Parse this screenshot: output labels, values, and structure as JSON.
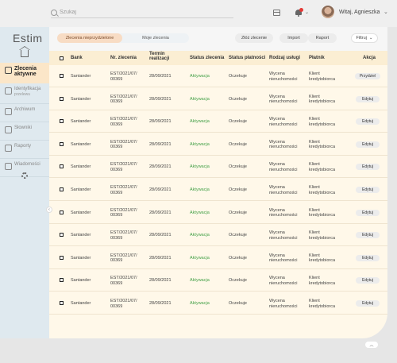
{
  "header": {
    "search_placeholder": "Szukaj",
    "user_name": "Witaj, Agnieszka",
    "icons": [
      "search-icon",
      "calendar-icon",
      "bell-icon",
      "chevron-down-icon"
    ],
    "notification_color": "#e53935"
  },
  "sidebar": {
    "logo": "Estim",
    "items": [
      {
        "label": "Zlecenia",
        "sub": "aktywne",
        "active": true
      },
      {
        "label": "Identyfikacja",
        "sub": "przelewu",
        "active": false
      },
      {
        "label": "Archiwum",
        "sub": "",
        "active": false
      },
      {
        "label": "Słowniki",
        "sub": "",
        "active": false
      },
      {
        "label": "Raporty",
        "sub": "",
        "active": false
      },
      {
        "label": "Wiadomości",
        "sub": "",
        "active": false
      }
    ]
  },
  "toolbar": {
    "tab_unassigned": "Zlecenia nieprzydzielone",
    "tab_mine": "Moje zlecenia",
    "add_order": "Złóż zlecenie",
    "import": "Import",
    "report": "Raport",
    "filters": "Filtruj"
  },
  "table": {
    "columns": [
      "Bank",
      "Nr. zlecenia",
      "Termin realizacji",
      "Status zlecenia",
      "Status płatności",
      "Rodzaj usługi",
      "Płatnik",
      "Akcja"
    ],
    "rows": [
      {
        "bank": "Santander",
        "nr1": "EST/2021/07/",
        "nr2": "00369",
        "termin": "28/09/2021",
        "status": "Aktywacja",
        "platnosc": "Oczekuje",
        "usluga1": "Wycena",
        "usluga2": "nieruchomości",
        "platnik1": "Klient",
        "platnik2": "kredytobiorca",
        "akcja": "Przydziel"
      },
      {
        "bank": "Santander",
        "nr1": "EST/2021/07/",
        "nr2": "00369",
        "termin": "28/09/2021",
        "status": "Aktywacja",
        "platnosc": "Oczekuje",
        "usluga1": "Wycena",
        "usluga2": "nieruchomości",
        "platnik1": "Klient",
        "platnik2": "kredytobiorca",
        "akcja": "Edytuj"
      },
      {
        "bank": "Santander",
        "nr1": "EST/2021/07/",
        "nr2": "00369",
        "termin": "28/09/2021",
        "status": "Aktywacja",
        "platnosc": "Oczekuje",
        "usluga1": "Wycena",
        "usluga2": "nieruchomości",
        "platnik1": "Klient",
        "platnik2": "kredytobiorca",
        "akcja": "Edytuj"
      },
      {
        "bank": "Santander",
        "nr1": "EST/2021/07/",
        "nr2": "00369",
        "termin": "28/09/2021",
        "status": "Aktywacja",
        "platnosc": "Oczekuje",
        "usluga1": "Wycena",
        "usluga2": "nieruchomości",
        "platnik1": "Klient",
        "platnik2": "kredytobiorca",
        "akcja": "Edytuj"
      },
      {
        "bank": "Santander",
        "nr1": "EST/2021/07/",
        "nr2": "00369",
        "termin": "28/09/2021",
        "status": "Aktywacja",
        "platnosc": "Oczekuje",
        "usluga1": "Wycena",
        "usluga2": "nieruchomości",
        "platnik1": "Klient",
        "platnik2": "kredytobiorca",
        "akcja": "Edytuj"
      },
      {
        "bank": "Santander",
        "nr1": "EST/2021/07/",
        "nr2": "00369",
        "termin": "28/09/2021",
        "status": "Aktywacja",
        "platnosc": "Oczekuje",
        "usluga1": "Wycena",
        "usluga2": "nieruchomości",
        "platnik1": "Klient",
        "platnik2": "kredytobiorca",
        "akcja": "Edytuj"
      },
      {
        "bank": "Santander",
        "nr1": "EST/2021/07/",
        "nr2": "00369",
        "termin": "28/09/2021",
        "status": "Aktywacja",
        "platnosc": "Oczekuje",
        "usluga1": "Wycena",
        "usluga2": "nieruchomości",
        "platnik1": "Klient",
        "platnik2": "kredytobiorca",
        "akcja": "Edytuj"
      },
      {
        "bank": "Santander",
        "nr1": "EST/2021/07/",
        "nr2": "00369",
        "termin": "28/09/2021",
        "status": "Aktywacja",
        "platnosc": "Oczekuje",
        "usluga1": "Wycena",
        "usluga2": "nieruchomości",
        "platnik1": "Klient",
        "platnik2": "kredytobiorca",
        "akcja": "Edytuj"
      },
      {
        "bank": "Santander",
        "nr1": "EST/2021/07/",
        "nr2": "00369",
        "termin": "28/09/2021",
        "status": "Aktywacja",
        "platnosc": "Oczekuje",
        "usluga1": "Wycena",
        "usluga2": "nieruchomości",
        "platnik1": "Klient",
        "platnik2": "kredytobiorca",
        "akcja": "Edytuj"
      },
      {
        "bank": "Santander",
        "nr1": "EST/2021/07/",
        "nr2": "00369",
        "termin": "28/09/2021",
        "status": "Aktywacja",
        "platnosc": "Oczekuje",
        "usluga1": "Wycena",
        "usluga2": "nieruchomości",
        "platnik1": "Klient",
        "platnik2": "kredytobiorca",
        "akcja": "Edytuj"
      },
      {
        "bank": "Santander",
        "nr1": "EST/2021/07/",
        "nr2": "00369",
        "termin": "28/09/2021",
        "status": "Aktywacja",
        "platnosc": "Oczekuje",
        "usluga1": "Wycena",
        "usluga2": "nieruchomości",
        "platnik1": "Klient",
        "platnik2": "kredytobiorca",
        "akcja": "Edytuj"
      }
    ]
  },
  "colors": {
    "accent": "#f8dcc4",
    "status_active": "#43a047",
    "sidebar_bg": "#dfe9ef",
    "table_bg": "#fff8e9"
  }
}
